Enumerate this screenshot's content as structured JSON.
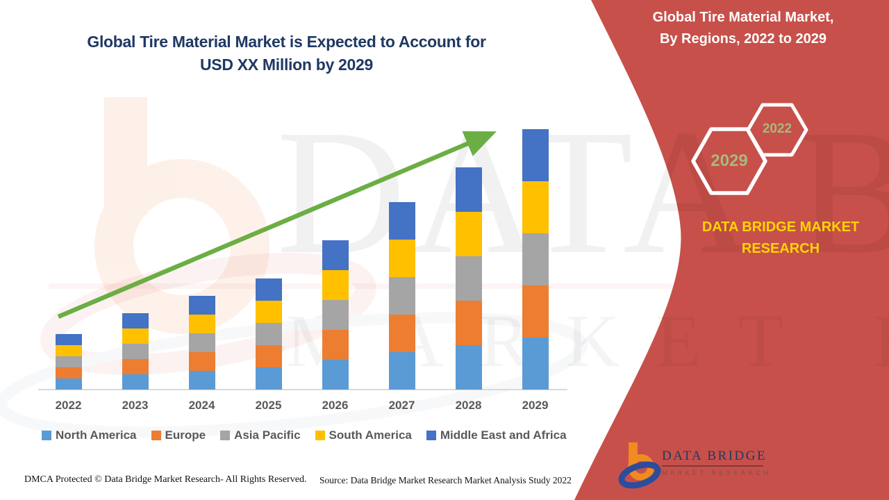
{
  "chart_title": {
    "line1": "Global Tire Material Market is Expected to Account for",
    "line2": "USD XX Million by 2029"
  },
  "chart_data": {
    "type": "bar",
    "stacked": true,
    "title": "Global Tire Material Market is Expected to Account for USD XX Million by 2029",
    "categories": [
      "2022",
      "2023",
      "2024",
      "2025",
      "2026",
      "2027",
      "2028",
      "2029"
    ],
    "series": [
      {
        "name": "North America",
        "color": "#5B9BD5",
        "values": [
          16,
          22,
          27,
          32,
          43,
          54,
          64,
          75
        ]
      },
      {
        "name": "Europe",
        "color": "#ED7D31",
        "values": [
          16,
          22,
          27,
          32,
          43,
          54,
          64,
          75
        ]
      },
      {
        "name": "Asia Pacific",
        "color": "#A5A5A5",
        "values": [
          16,
          22,
          27,
          32,
          43,
          54,
          64,
          75
        ]
      },
      {
        "name": "South America",
        "color": "#FFC000",
        "values": [
          16,
          22,
          27,
          32,
          43,
          54,
          64,
          75
        ]
      },
      {
        "name": "Middle East and Africa",
        "color": "#4472C4",
        "values": [
          16,
          22,
          27,
          32,
          43,
          54,
          64,
          75
        ]
      }
    ],
    "totals": [
      80,
      110,
      135,
      160,
      215,
      270,
      320,
      375
    ],
    "value_units": "relative height units (no numeric axis shown; values labeled USD XX Million)",
    "xlabel": "",
    "ylabel": "",
    "ylim": [
      0,
      400
    ],
    "grid": false,
    "legend_position": "bottom",
    "trend_arrow": {
      "present": true,
      "direction": "up-right",
      "color": "#6BAE44"
    }
  },
  "right_panel": {
    "title_line1": "Global Tire Material Market,",
    "title_line2": "By Regions, 2022 to 2029",
    "hexagon_big_label": "2029",
    "hexagon_small_label": "2022",
    "brand_line1": "DATA BRIDGE MARKET",
    "brand_line2": "RESEARCH",
    "logo_name": "DATA BRIDGE",
    "logo_subtitle": "MARKET RESEARCH",
    "colors": {
      "background": "#C7504B",
      "hexagon_outline": "#FFFFFF",
      "hexagon_text": "#A9B87D",
      "brand_text": "#FFD400"
    }
  },
  "watermark": {
    "line1": "DATA BRIDGE",
    "line2": "MARKET RESEARCH"
  },
  "footer": {
    "dmca": "DMCA Protected © Data Bridge Market Research- All Rights Reserved.",
    "source": "Source: Data Bridge Market Research Market Analysis Study 2022"
  }
}
